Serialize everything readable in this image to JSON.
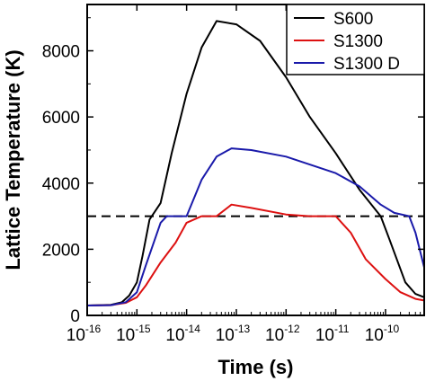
{
  "chart_data": {
    "type": "line",
    "title": "",
    "xlabel": "Time (s)",
    "ylabel": "Lattice Temperature (K)",
    "xscale": "log",
    "xlim": [
      1e-16,
      6e-10
    ],
    "ylim": [
      0,
      9400
    ],
    "x_ticks": [
      {
        "base": "10",
        "exp": "-16",
        "value": -16
      },
      {
        "base": "10",
        "exp": "-15",
        "value": -15
      },
      {
        "base": "10",
        "exp": "-14",
        "value": -14
      },
      {
        "base": "10",
        "exp": "-13",
        "value": -13
      },
      {
        "base": "10",
        "exp": "-12",
        "value": -12
      },
      {
        "base": "10",
        "exp": "-11",
        "value": -11
      },
      {
        "base": "10",
        "exp": "-10",
        "value": -10
      }
    ],
    "y_ticks": [
      {
        "label": "0",
        "value": 0
      },
      {
        "label": "2000",
        "value": 2000
      },
      {
        "label": "4000",
        "value": 4000
      },
      {
        "label": "6000",
        "value": 6000
      },
      {
        "label": "8000",
        "value": 8000
      }
    ],
    "legend_position": "top-right",
    "reference_line": {
      "y": 3000,
      "style": "dashed",
      "color": "#000000"
    },
    "series": [
      {
        "name": "S600",
        "color": "#000000",
        "points": [
          [
            1e-16,
            300
          ],
          [
            3e-16,
            320
          ],
          [
            5e-16,
            400
          ],
          [
            7e-16,
            600
          ],
          [
            1e-15,
            1000
          ],
          [
            1.3e-15,
            1800
          ],
          [
            1.8e-15,
            2900
          ],
          [
            3e-15,
            3400
          ],
          [
            5e-15,
            4900
          ],
          [
            1e-14,
            6700
          ],
          [
            2e-14,
            8100
          ],
          [
            4e-14,
            8900
          ],
          [
            1e-13,
            8800
          ],
          [
            3e-13,
            8300
          ],
          [
            1e-12,
            7200
          ],
          [
            3e-12,
            6000
          ],
          [
            1e-11,
            4900
          ],
          [
            3e-11,
            3800
          ],
          [
            8e-11,
            3000
          ],
          [
            1.2e-10,
            2300
          ],
          [
            2.5e-10,
            1000
          ],
          [
            4e-10,
            650
          ],
          [
            6e-10,
            550
          ]
        ]
      },
      {
        "name": "S1300",
        "color": "#dd1111",
        "points": [
          [
            1e-16,
            300
          ],
          [
            3e-16,
            310
          ],
          [
            6e-16,
            380
          ],
          [
            1e-15,
            550
          ],
          [
            1.5e-15,
            900
          ],
          [
            3e-15,
            1600
          ],
          [
            6e-15,
            2200
          ],
          [
            1e-14,
            2800
          ],
          [
            2e-14,
            3000
          ],
          [
            4e-14,
            3000
          ],
          [
            8e-14,
            3350
          ],
          [
            2e-13,
            3250
          ],
          [
            1e-12,
            3050
          ],
          [
            3e-12,
            3000
          ],
          [
            1e-11,
            3000
          ],
          [
            2e-11,
            2500
          ],
          [
            4e-11,
            1700
          ],
          [
            1e-10,
            1100
          ],
          [
            2e-10,
            700
          ],
          [
            4e-10,
            500
          ],
          [
            6e-10,
            450
          ]
        ]
      },
      {
        "name": "S1300 D",
        "color": "#1a1aaa",
        "points": [
          [
            1e-16,
            300
          ],
          [
            3e-16,
            310
          ],
          [
            6e-16,
            400
          ],
          [
            1e-15,
            700
          ],
          [
            1.5e-15,
            1500
          ],
          [
            3e-15,
            2800
          ],
          [
            4e-15,
            3000
          ],
          [
            1e-14,
            3000
          ],
          [
            2e-14,
            4100
          ],
          [
            4e-14,
            4800
          ],
          [
            8e-14,
            5050
          ],
          [
            2e-13,
            5000
          ],
          [
            1e-12,
            4800
          ],
          [
            1e-11,
            4300
          ],
          [
            3e-11,
            3900
          ],
          [
            8e-11,
            3350
          ],
          [
            1.5e-10,
            3100
          ],
          [
            3e-10,
            3000
          ],
          [
            4e-10,
            2500
          ],
          [
            6e-10,
            1450
          ]
        ]
      }
    ]
  }
}
